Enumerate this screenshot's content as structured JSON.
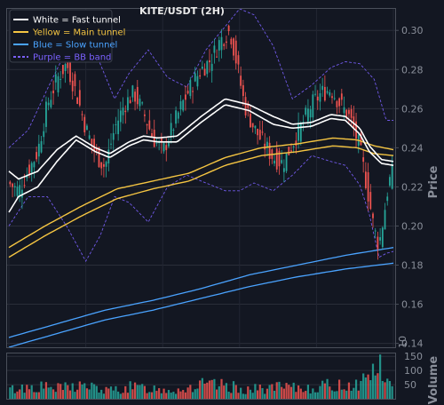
{
  "chart_data": {
    "type": "line",
    "title": "KITE/USDT (2H)",
    "ylabel": "Price",
    "ylim": [
      0.138,
      0.311
    ],
    "yticks": [
      "0.14",
      "0.16",
      "0.18",
      "0.20",
      "0.22",
      "0.24",
      "0.26",
      "0.28",
      "0.30"
    ],
    "grid": true,
    "legend_position": "top-left",
    "colors": {
      "background": "#131722",
      "up": "#26a69a",
      "down": "#ef5350",
      "fast": "#ffffff",
      "main": "#f5c542",
      "slow": "#4aa3ff",
      "bb": "#7b61ff"
    },
    "legend": [
      {
        "label": "White = Fast tunnel",
        "color": "#ffffff",
        "style": "solid"
      },
      {
        "label": "Yellow = Main tunnel",
        "color": "#f5c542",
        "style": "solid"
      },
      {
        "label": "Blue = Slow tunnel",
        "color": "#4aa3ff",
        "style": "solid"
      },
      {
        "label": "Purple = BB band",
        "color": "#7b61ff",
        "style": "dashed"
      }
    ],
    "series": [
      {
        "name": "White = Fast tunnel",
        "role": "fast_upper",
        "keys": [
          0,
          0.228,
          4,
          0.224,
          12,
          0.228,
          20,
          0.239,
          28,
          0.246,
          36,
          0.24,
          42,
          0.237,
          50,
          0.243,
          56,
          0.246,
          62,
          0.245,
          70,
          0.246,
          80,
          0.256,
          90,
          0.265,
          100,
          0.262,
          110,
          0.256,
          118,
          0.252,
          126,
          0.253,
          134,
          0.257,
          140,
          0.256,
          146,
          0.25,
          150,
          0.241,
          155,
          0.234,
          160,
          0.233
        ]
      },
      {
        "name": "White = Fast tunnel",
        "role": "fast_lower",
        "keys": [
          0,
          0.207,
          4,
          0.215,
          12,
          0.22,
          20,
          0.233,
          28,
          0.244,
          36,
          0.238,
          42,
          0.235,
          50,
          0.241,
          56,
          0.244,
          62,
          0.243,
          70,
          0.243,
          80,
          0.253,
          90,
          0.262,
          100,
          0.259,
          110,
          0.252,
          118,
          0.25,
          126,
          0.251,
          134,
          0.255,
          140,
          0.254,
          146,
          0.247,
          150,
          0.238,
          155,
          0.232,
          160,
          0.231
        ]
      },
      {
        "name": "Yellow = Main tunnel",
        "role": "main_upper",
        "keys": [
          0,
          0.189,
          15,
          0.2,
          30,
          0.21,
          45,
          0.219,
          60,
          0.223,
          75,
          0.227,
          90,
          0.235,
          105,
          0.24,
          120,
          0.242,
          135,
          0.245,
          145,
          0.244,
          152,
          0.241,
          160,
          0.239
        ]
      },
      {
        "name": "Yellow = Main tunnel",
        "role": "main_lower",
        "keys": [
          0,
          0.184,
          15,
          0.195,
          30,
          0.205,
          45,
          0.214,
          60,
          0.219,
          75,
          0.223,
          90,
          0.231,
          105,
          0.236,
          120,
          0.238,
          135,
          0.241,
          145,
          0.24,
          152,
          0.237,
          160,
          0.236
        ]
      },
      {
        "name": "Blue = Slow tunnel",
        "role": "slow_upper",
        "keys": [
          0,
          0.143,
          20,
          0.15,
          40,
          0.157,
          60,
          0.162,
          80,
          0.168,
          100,
          0.175,
          120,
          0.18,
          140,
          0.185,
          160,
          0.189
        ]
      },
      {
        "name": "Blue = Slow tunnel",
        "role": "slow_lower",
        "keys": [
          0,
          0.138,
          20,
          0.145,
          40,
          0.152,
          60,
          0.157,
          80,
          0.163,
          100,
          0.169,
          120,
          0.174,
          140,
          0.178,
          160,
          0.181
        ]
      },
      {
        "name": "Purple = BB band",
        "role": "bb_upper",
        "keys": [
          0,
          0.24,
          8,
          0.249,
          16,
          0.27,
          24,
          0.29,
          32,
          0.3,
          38,
          0.283,
          44,
          0.265,
          50,
          0.278,
          58,
          0.29,
          66,
          0.276,
          74,
          0.271,
          82,
          0.29,
          90,
          0.302,
          96,
          0.311,
          102,
          0.308,
          110,
          0.292,
          118,
          0.265,
          126,
          0.272,
          134,
          0.281,
          140,
          0.284,
          146,
          0.283,
          152,
          0.275,
          157,
          0.254,
          160,
          0.254
        ]
      },
      {
        "name": "Purple = BB band",
        "role": "bb_lower",
        "keys": [
          0,
          0.2,
          8,
          0.215,
          16,
          0.215,
          24,
          0.2,
          32,
          0.182,
          38,
          0.195,
          44,
          0.215,
          50,
          0.212,
          58,
          0.202,
          66,
          0.22,
          74,
          0.226,
          82,
          0.222,
          90,
          0.218,
          96,
          0.218,
          102,
          0.222,
          110,
          0.218,
          118,
          0.226,
          126,
          0.236,
          134,
          0.233,
          140,
          0.231,
          146,
          0.221,
          150,
          0.206,
          154,
          0.184,
          157,
          0.186,
          160,
          0.187
        ]
      },
      {
        "name": "Close",
        "role": "price_close",
        "keys": [
          0,
          0.222,
          4,
          0.218,
          8,
          0.228,
          12,
          0.238,
          16,
          0.262,
          20,
          0.275,
          24,
          0.283,
          28,
          0.268,
          32,
          0.25,
          36,
          0.237,
          40,
          0.23,
          44,
          0.25,
          48,
          0.262,
          52,
          0.268,
          56,
          0.258,
          60,
          0.245,
          64,
          0.238,
          68,
          0.25,
          72,
          0.262,
          76,
          0.272,
          80,
          0.28,
          84,
          0.285,
          88,
          0.295,
          92,
          0.3,
          95,
          0.282,
          98,
          0.262,
          102,
          0.25,
          106,
          0.242,
          110,
          0.235,
          114,
          0.232,
          118,
          0.242,
          122,
          0.252,
          126,
          0.262,
          130,
          0.268,
          134,
          0.27,
          138,
          0.262,
          142,
          0.255,
          146,
          0.24,
          149,
          0.22,
          152,
          0.198,
          154,
          0.19,
          156,
          0.205,
          158,
          0.222,
          160,
          0.228
        ]
      },
      {
        "name": "Volume",
        "role": "volume",
        "keys": [
          0,
          40,
          10,
          55,
          20,
          45,
          30,
          60,
          40,
          35,
          50,
          50,
          60,
          45,
          70,
          40,
          80,
          60,
          90,
          55,
          100,
          40,
          110,
          50,
          120,
          45,
          130,
          55,
          140,
          60,
          146,
          70,
          150,
          120,
          153,
          150,
          156,
          90,
          160,
          30
        ]
      }
    ],
    "volume": {
      "label": "Volume",
      "exponent": "10",
      "yticks": [
        "50",
        "100",
        "150"
      ],
      "ylim": [
        0,
        160
      ]
    }
  }
}
